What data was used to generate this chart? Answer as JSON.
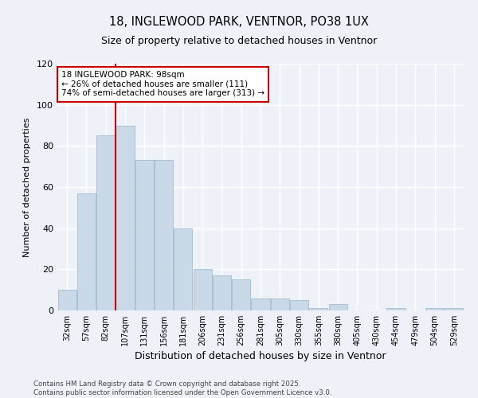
{
  "title": "18, INGLEWOOD PARK, VENTNOR, PO38 1UX",
  "subtitle": "Size of property relative to detached houses in Ventnor",
  "xlabel": "Distribution of detached houses by size in Ventnor",
  "ylabel": "Number of detached properties",
  "categories": [
    "32sqm",
    "57sqm",
    "82sqm",
    "107sqm",
    "131sqm",
    "156sqm",
    "181sqm",
    "206sqm",
    "231sqm",
    "256sqm",
    "281sqm",
    "305sqm",
    "330sqm",
    "355sqm",
    "380sqm",
    "405sqm",
    "430sqm",
    "454sqm",
    "479sqm",
    "504sqm",
    "529sqm"
  ],
  "values": [
    10,
    57,
    85,
    90,
    73,
    73,
    40,
    20,
    17,
    15,
    6,
    6,
    5,
    1,
    3,
    0,
    0,
    1,
    0,
    1,
    1
  ],
  "bar_color": "#c9d9e8",
  "bar_edge_color": "#a0bcd0",
  "vline_x": 2.5,
  "vline_color": "#cc0000",
  "annotation_line1": "18 INGLEWOOD PARK: 98sqm",
  "annotation_line2": "← 26% of detached houses are smaller (111)",
  "annotation_line3": "74% of semi-detached houses are larger (313) →",
  "ylim": [
    0,
    120
  ],
  "yticks": [
    0,
    20,
    40,
    60,
    80,
    100,
    120
  ],
  "background_color": "#eef2f8",
  "grid_color": "#ffffff",
  "footer_line1": "Contains HM Land Registry data © Crown copyright and database right 2025.",
  "footer_line2": "Contains public sector information licensed under the Open Government Licence v3.0."
}
